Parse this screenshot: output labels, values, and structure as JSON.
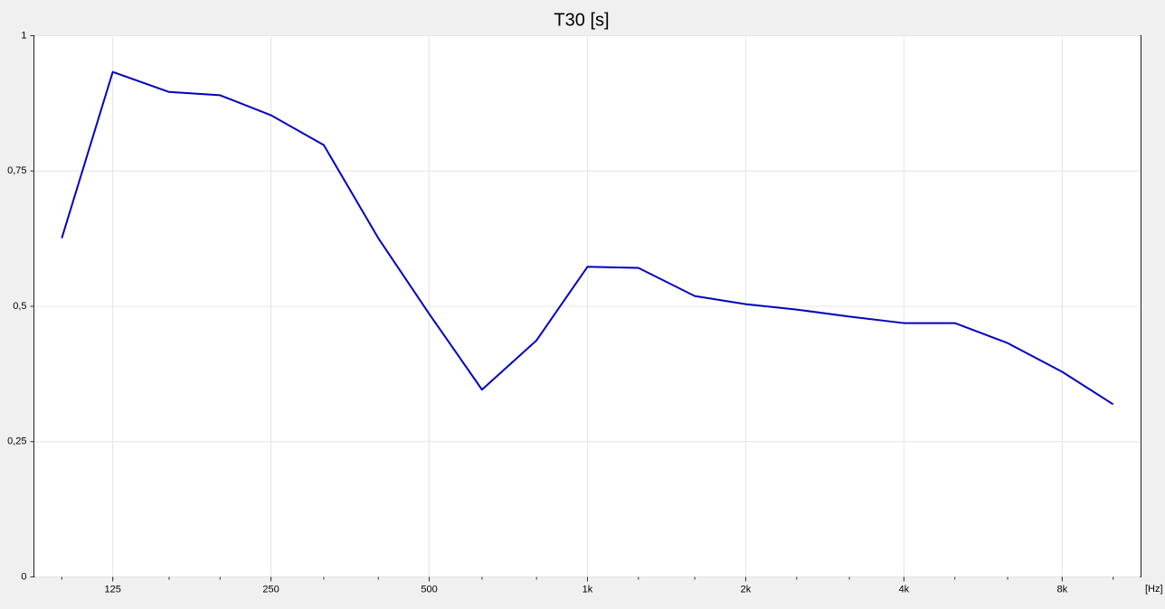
{
  "chart_data": {
    "type": "line",
    "title": "T30 [s]",
    "x_label": "[Hz]",
    "log_x": true,
    "grid": true,
    "x": [
      100,
      125,
      160,
      200,
      250,
      315,
      400,
      500,
      630,
      800,
      1000,
      1250,
      1600,
      2000,
      2500,
      3150,
      4000,
      5000,
      6300,
      8000,
      10000
    ],
    "series": [
      {
        "name": "T30",
        "color": "#0000c0",
        "values": [
          0.626,
          0.933,
          0.896,
          0.89,
          0.853,
          0.798,
          0.626,
          0.486,
          0.346,
          0.437,
          0.573,
          0.571,
          0.519,
          0.504,
          0.494,
          0.481,
          0.469,
          0.469,
          0.432,
          0.379,
          0.319
        ]
      }
    ],
    "xlim": [
      88.5,
      11300
    ],
    "xticks": [
      125,
      250,
      500,
      {
        "value": 1000,
        "label": "1k"
      },
      {
        "value": 2000,
        "label": "2k"
      },
      {
        "value": 4000,
        "label": "4k"
      },
      {
        "value": 8000,
        "label": "8k"
      }
    ],
    "ylim": [
      0,
      1
    ],
    "yticks": [
      0,
      {
        "value": 0.25,
        "label": "0,25"
      },
      {
        "value": 0.5,
        "label": "0,5"
      },
      {
        "value": 0.75,
        "label": "0,75"
      },
      1
    ]
  }
}
